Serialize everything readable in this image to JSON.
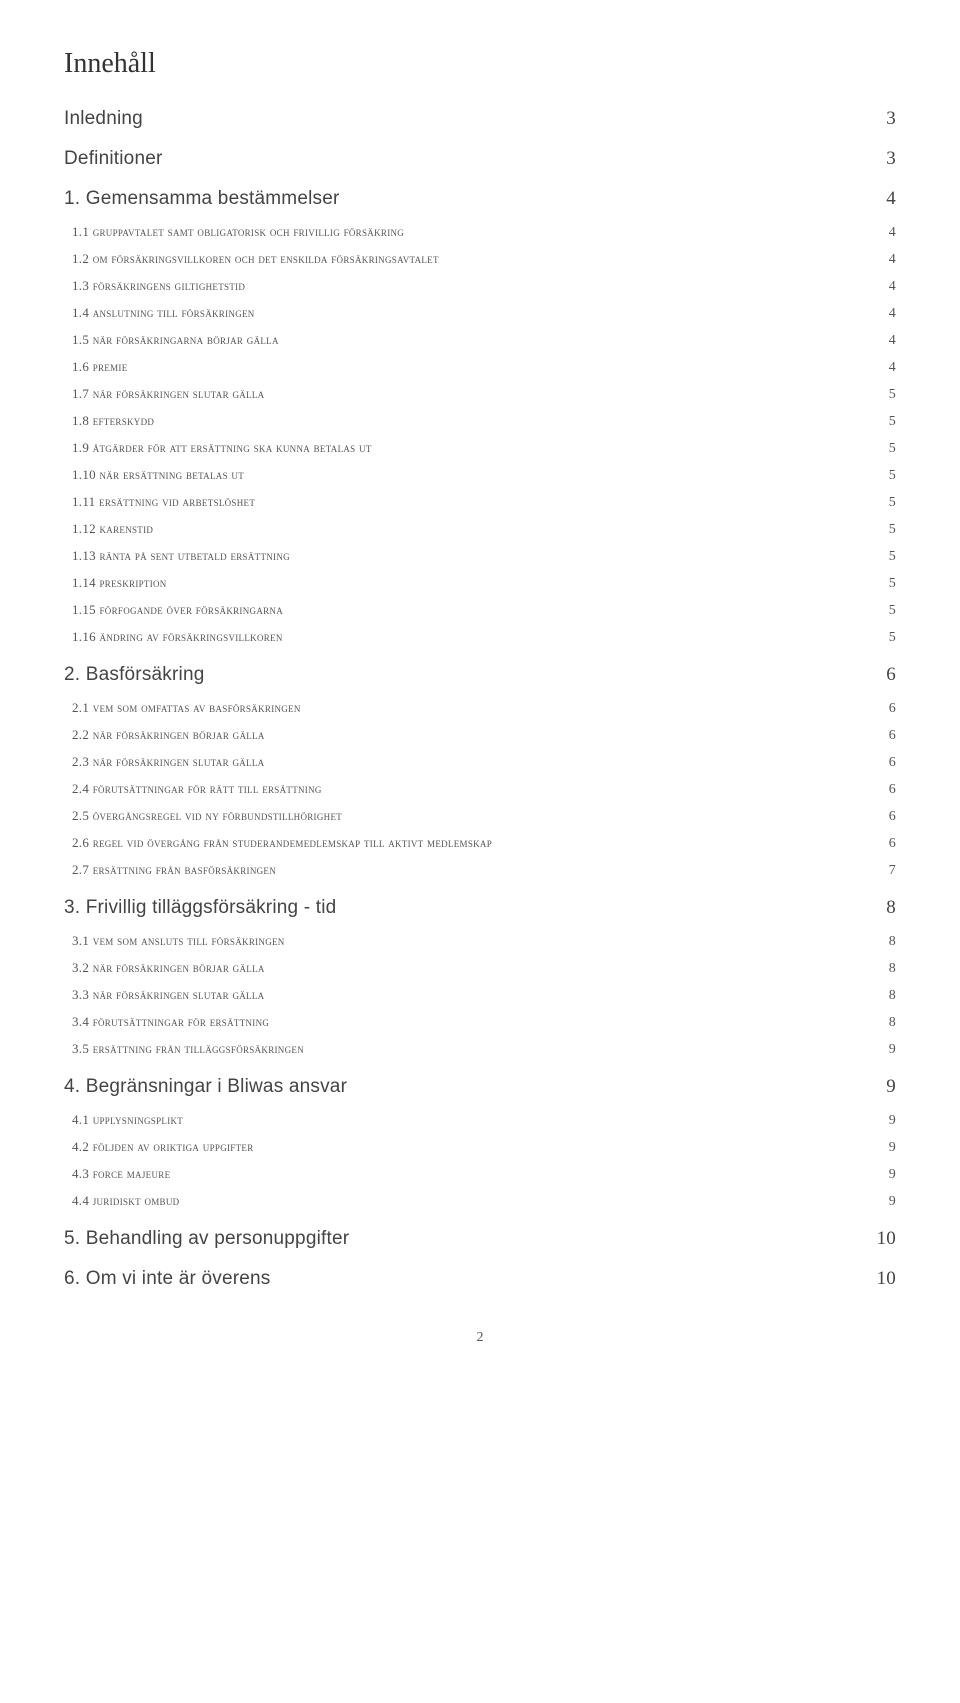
{
  "title": "Innehåll",
  "page_number": "2",
  "sections": [
    {
      "label": "Inledning",
      "page": "3",
      "subs": []
    },
    {
      "label": "Definitioner",
      "page": "3",
      "subs": []
    },
    {
      "label": "1. Gemensamma bestämmelser",
      "page": "4",
      "subs": [
        {
          "label": "1.1 gruppavtalet samt obligatorisk och frivillig försäkring",
          "page": "4"
        },
        {
          "label": "1.2 om försäkringsvillkoren och det enskilda försäkringsavtalet",
          "page": "4"
        },
        {
          "label": "1.3 försäkringens giltighetstid",
          "page": "4"
        },
        {
          "label": "1.4 anslutning till försäkringen",
          "page": "4"
        },
        {
          "label": "1.5 när försäkringarna börjar gälla",
          "page": "4"
        },
        {
          "label": "1.6 premie",
          "page": "4"
        },
        {
          "label": "1.7 när försäkringen slutar gälla",
          "page": "5"
        },
        {
          "label": "1.8 efterskydd",
          "page": "5"
        },
        {
          "label": "1.9 åtgärder för att ersättning ska kunna betalas ut",
          "page": "5"
        },
        {
          "label": "1.10 när ersättning betalas ut",
          "page": "5"
        },
        {
          "label": "1.11 ersättning vid arbetslöshet",
          "page": "5"
        },
        {
          "label": "1.12 karenstid",
          "page": "5"
        },
        {
          "label": "1.13 ränta på sent utbetald ersättning",
          "page": "5"
        },
        {
          "label": "1.14 preskription",
          "page": "5"
        },
        {
          "label": "1.15 förfogande över försäkringarna",
          "page": "5"
        },
        {
          "label": "1.16 ändring av försäkringsvillkoren",
          "page": "5"
        }
      ]
    },
    {
      "label": "2. Basförsäkring",
      "page": "6",
      "subs": [
        {
          "label": "2.1 vem som omfattas av basförsäkringen",
          "page": "6"
        },
        {
          "label": "2.2 när försäkringen börjar gälla",
          "page": "6"
        },
        {
          "label": "2.3 när försäkringen slutar gälla",
          "page": "6"
        },
        {
          "label": "2.4 förutsättningar för rätt till ersättning",
          "page": "6"
        },
        {
          "label": "2.5 övergångsregel vid ny förbundstillhörighet",
          "page": "6"
        },
        {
          "label": "2.6 regel vid övergång från studerandemedlemskap till aktivt medlemskap",
          "page": "6"
        },
        {
          "label": "2.7 ersättning från basförsäkringen",
          "page": "7"
        }
      ]
    },
    {
      "label": "3. Frivillig tilläggsförsäkring - tid",
      "page": "8",
      "subs": [
        {
          "label": "3.1 vem som ansluts till försäkringen",
          "page": "8"
        },
        {
          "label": "3.2 när försäkringen börjar gälla",
          "page": "8"
        },
        {
          "label": "3.3 när försäkringen slutar gälla",
          "page": "8"
        },
        {
          "label": "3.4 förutsättningar för ersättning",
          "page": "8"
        },
        {
          "label": "3.5 ersättning från tilläggsförsäkringen",
          "page": "9"
        }
      ]
    },
    {
      "label": "4. Begränsningar i Bliwas ansvar",
      "page": "9",
      "subs": [
        {
          "label": "4.1 upplysningsplikt",
          "page": "9"
        },
        {
          "label": "4.2 följden av oriktiga uppgifter",
          "page": "9"
        },
        {
          "label": "4.3 force majeure",
          "page": "9"
        },
        {
          "label": "4.4 juridiskt ombud",
          "page": "9"
        }
      ]
    },
    {
      "label": "5. Behandling av personuppgifter",
      "page": "10",
      "subs": []
    },
    {
      "label": "6. Om vi inte är överens",
      "page": "10",
      "subs": []
    }
  ]
}
